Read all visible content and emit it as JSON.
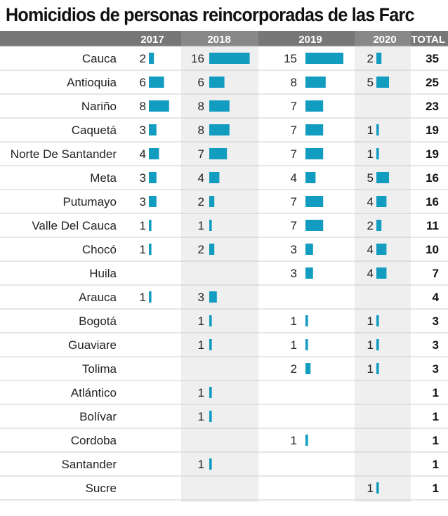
{
  "chart_data": {
    "type": "table",
    "title": "Homicidios de personas reincorporadas de las Farc",
    "columns": [
      "2017",
      "2018",
      "2019",
      "2020"
    ],
    "total_label": "TOTAL",
    "rows": [
      {
        "name": "Cauca",
        "values": [
          2,
          16,
          15,
          2
        ],
        "total": 35
      },
      {
        "name": "Antioquia",
        "values": [
          6,
          6,
          8,
          5
        ],
        "total": 25
      },
      {
        "name": "Nariño",
        "values": [
          8,
          8,
          7,
          null
        ],
        "total": 23
      },
      {
        "name": "Caquetá",
        "values": [
          3,
          8,
          7,
          1
        ],
        "total": 19
      },
      {
        "name": "Norte De Santander",
        "values": [
          4,
          7,
          7,
          1
        ],
        "total": 19
      },
      {
        "name": "Meta",
        "values": [
          3,
          4,
          4,
          5
        ],
        "total": 16
      },
      {
        "name": "Putumayo",
        "values": [
          3,
          2,
          7,
          4
        ],
        "total": 16
      },
      {
        "name": "Valle Del Cauca",
        "values": [
          1,
          1,
          7,
          2
        ],
        "total": 11
      },
      {
        "name": "Chocó",
        "values": [
          1,
          2,
          3,
          4
        ],
        "total": 10
      },
      {
        "name": "Huila",
        "values": [
          null,
          null,
          3,
          4
        ],
        "total": 7
      },
      {
        "name": "Arauca",
        "values": [
          1,
          3,
          null,
          null
        ],
        "total": 4
      },
      {
        "name": "Bogotá",
        "values": [
          null,
          1,
          1,
          1
        ],
        "total": 3
      },
      {
        "name": "Guaviare",
        "values": [
          null,
          1,
          1,
          1
        ],
        "total": 3
      },
      {
        "name": "Tolima",
        "values": [
          null,
          null,
          2,
          1
        ],
        "total": 3
      },
      {
        "name": "Atlántico",
        "values": [
          null,
          1,
          null,
          null
        ],
        "total": 1
      },
      {
        "name": "Bolívar",
        "values": [
          null,
          1,
          null,
          null
        ],
        "total": 1
      },
      {
        "name": "Cordoba",
        "values": [
          null,
          null,
          1,
          null
        ],
        "total": 1
      },
      {
        "name": "Santander",
        "values": [
          null,
          1,
          null,
          null
        ],
        "total": 1
      },
      {
        "name": "Sucre",
        "values": [
          null,
          null,
          null,
          1
        ],
        "total": 1
      }
    ],
    "colors": {
      "bar": "#129cc0",
      "header_bg": "#777777",
      "header_text": "#ffffff",
      "shade": "#efefef",
      "rule": "#cccccc"
    }
  }
}
